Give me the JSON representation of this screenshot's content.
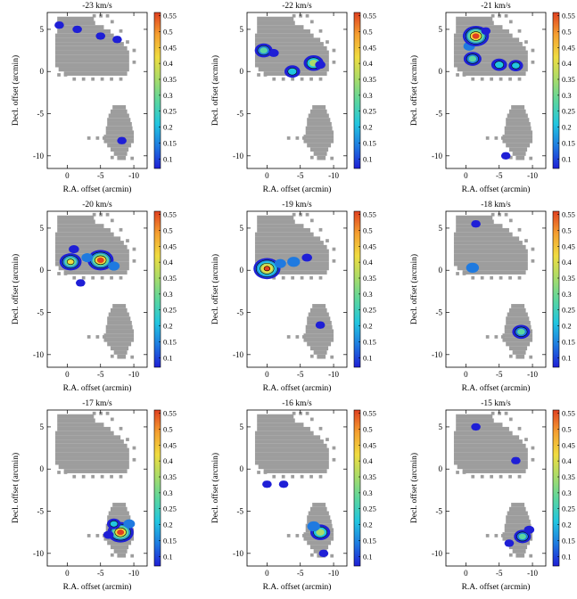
{
  "figure": {
    "xlabel": "R.A. offset (arcmin)",
    "ylabel": "Decl. offset (arcmin)"
  },
  "colorbar": {
    "ticks": [
      "0.55",
      "0.5",
      "0.45",
      "0.4",
      "0.35",
      "0.3",
      "0.25",
      "0.2",
      "0.15",
      "0.1"
    ],
    "range": [
      0.07,
      0.56
    ],
    "colors": [
      "#1f1fd6",
      "#1f7ae0",
      "#22c6e0",
      "#5ad6a0",
      "#a8dc6a",
      "#f0dc40",
      "#f5a030",
      "#e04020"
    ]
  },
  "axes": {
    "xticks": [
      "0",
      "-5",
      "-10"
    ],
    "yticks": [
      "5",
      "0",
      "-5",
      "-10"
    ]
  },
  "chart_data": [
    {
      "type": "heatmap",
      "title": "-23 km/s",
      "xlim": [
        3,
        -12
      ],
      "ylim": [
        -11.5,
        7
      ],
      "emission": [
        {
          "x": 1.2,
          "y": 5.5,
          "value": 0.1
        },
        {
          "x": -1.5,
          "y": 5.0,
          "value": 0.1
        },
        {
          "x": -5,
          "y": 4.2,
          "value": 0.1
        },
        {
          "x": -7.5,
          "y": 3.8,
          "value": 0.1
        },
        {
          "x": -8.2,
          "y": -8.2,
          "value": 0.1
        }
      ]
    },
    {
      "type": "heatmap",
      "title": "-22 km/s",
      "xlim": [
        3,
        -12
      ],
      "ylim": [
        -11.5,
        7
      ],
      "emission": [
        {
          "x": 0.5,
          "y": 2.5,
          "value": 0.3
        },
        {
          "x": -1,
          "y": 2.2,
          "value": 0.12
        },
        {
          "x": -7,
          "y": 1.0,
          "value": 0.35
        },
        {
          "x": -8,
          "y": 0.8,
          "value": 0.12
        },
        {
          "x": -3.8,
          "y": 0.0,
          "value": 0.25
        }
      ]
    },
    {
      "type": "heatmap",
      "title": "-21 km/s",
      "xlim": [
        3,
        -12
      ],
      "ylim": [
        -11.5,
        7
      ],
      "emission": [
        {
          "x": -0.5,
          "y": 3.0,
          "value": 0.15
        },
        {
          "x": -1.5,
          "y": 4.2,
          "value": 0.5
        },
        {
          "x": -1,
          "y": 1.5,
          "value": 0.3
        },
        {
          "x": -5,
          "y": 0.8,
          "value": 0.25
        },
        {
          "x": -7.5,
          "y": 0.7,
          "value": 0.22
        },
        {
          "x": -3,
          "y": 4.8,
          "value": 0.1
        },
        {
          "x": -6,
          "y": -10.0,
          "value": 0.1
        }
      ]
    },
    {
      "type": "heatmap",
      "title": "-20 km/s",
      "xlim": [
        3,
        -12
      ],
      "ylim": [
        -11.5,
        7
      ],
      "emission": [
        {
          "x": -0.5,
          "y": 1.0,
          "value": 0.4
        },
        {
          "x": -5,
          "y": 1.2,
          "value": 0.5
        },
        {
          "x": -3,
          "y": 1.5,
          "value": 0.15
        },
        {
          "x": -1,
          "y": 2.5,
          "value": 0.12
        },
        {
          "x": -7,
          "y": 0.5,
          "value": 0.15
        },
        {
          "x": -2,
          "y": -1.5,
          "value": 0.1
        }
      ]
    },
    {
      "type": "heatmap",
      "title": "-19 km/s",
      "xlim": [
        3,
        -12
      ],
      "ylim": [
        -11.5,
        7
      ],
      "emission": [
        {
          "x": 0,
          "y": 0.2,
          "value": 0.52
        },
        {
          "x": -4,
          "y": 1.0,
          "value": 0.18
        },
        {
          "x": -6,
          "y": 1.5,
          "value": 0.12
        },
        {
          "x": -2,
          "y": 0.8,
          "value": 0.15
        },
        {
          "x": -8,
          "y": -6.5,
          "value": 0.1
        }
      ]
    },
    {
      "type": "heatmap",
      "title": "-18 km/s",
      "xlim": [
        3,
        -12
      ],
      "ylim": [
        -11.5,
        7
      ],
      "emission": [
        {
          "x": -1,
          "y": 0.3,
          "value": 0.18
        },
        {
          "x": -1.5,
          "y": 5.5,
          "value": 0.1
        },
        {
          "x": -8.3,
          "y": -7.3,
          "value": 0.3
        }
      ]
    },
    {
      "type": "heatmap",
      "title": "-17 km/s",
      "xlim": [
        3,
        -12
      ],
      "ylim": [
        -11.5,
        7
      ],
      "emission": [
        {
          "x": -8,
          "y": -7.5,
          "value": 0.5
        },
        {
          "x": -7,
          "y": -6.5,
          "value": 0.2
        },
        {
          "x": -6.2,
          "y": -7.8,
          "value": 0.12
        },
        {
          "x": -9.3,
          "y": -6.5,
          "value": 0.15
        }
      ]
    },
    {
      "type": "heatmap",
      "title": "-16 km/s",
      "xlim": [
        3,
        -12
      ],
      "ylim": [
        -11.5,
        7
      ],
      "emission": [
        {
          "x": -8,
          "y": -7.5,
          "value": 0.35
        },
        {
          "x": -7,
          "y": -6.8,
          "value": 0.18
        },
        {
          "x": 0,
          "y": -1.8,
          "value": 0.1
        },
        {
          "x": -2.5,
          "y": -1.8,
          "value": 0.1
        },
        {
          "x": -8.5,
          "y": -10.0,
          "value": 0.1
        }
      ]
    },
    {
      "type": "heatmap",
      "title": "-15 km/s",
      "xlim": [
        3,
        -12
      ],
      "ylim": [
        -11.5,
        7
      ],
      "emission": [
        {
          "x": -8.5,
          "y": -8.0,
          "value": 0.28
        },
        {
          "x": -9.5,
          "y": -7.2,
          "value": 0.12
        },
        {
          "x": -6.5,
          "y": -8.8,
          "value": 0.1
        },
        {
          "x": -1.5,
          "y": 5.0,
          "value": 0.1
        },
        {
          "x": -7.5,
          "y": 1.0,
          "value": 0.1
        }
      ]
    }
  ]
}
